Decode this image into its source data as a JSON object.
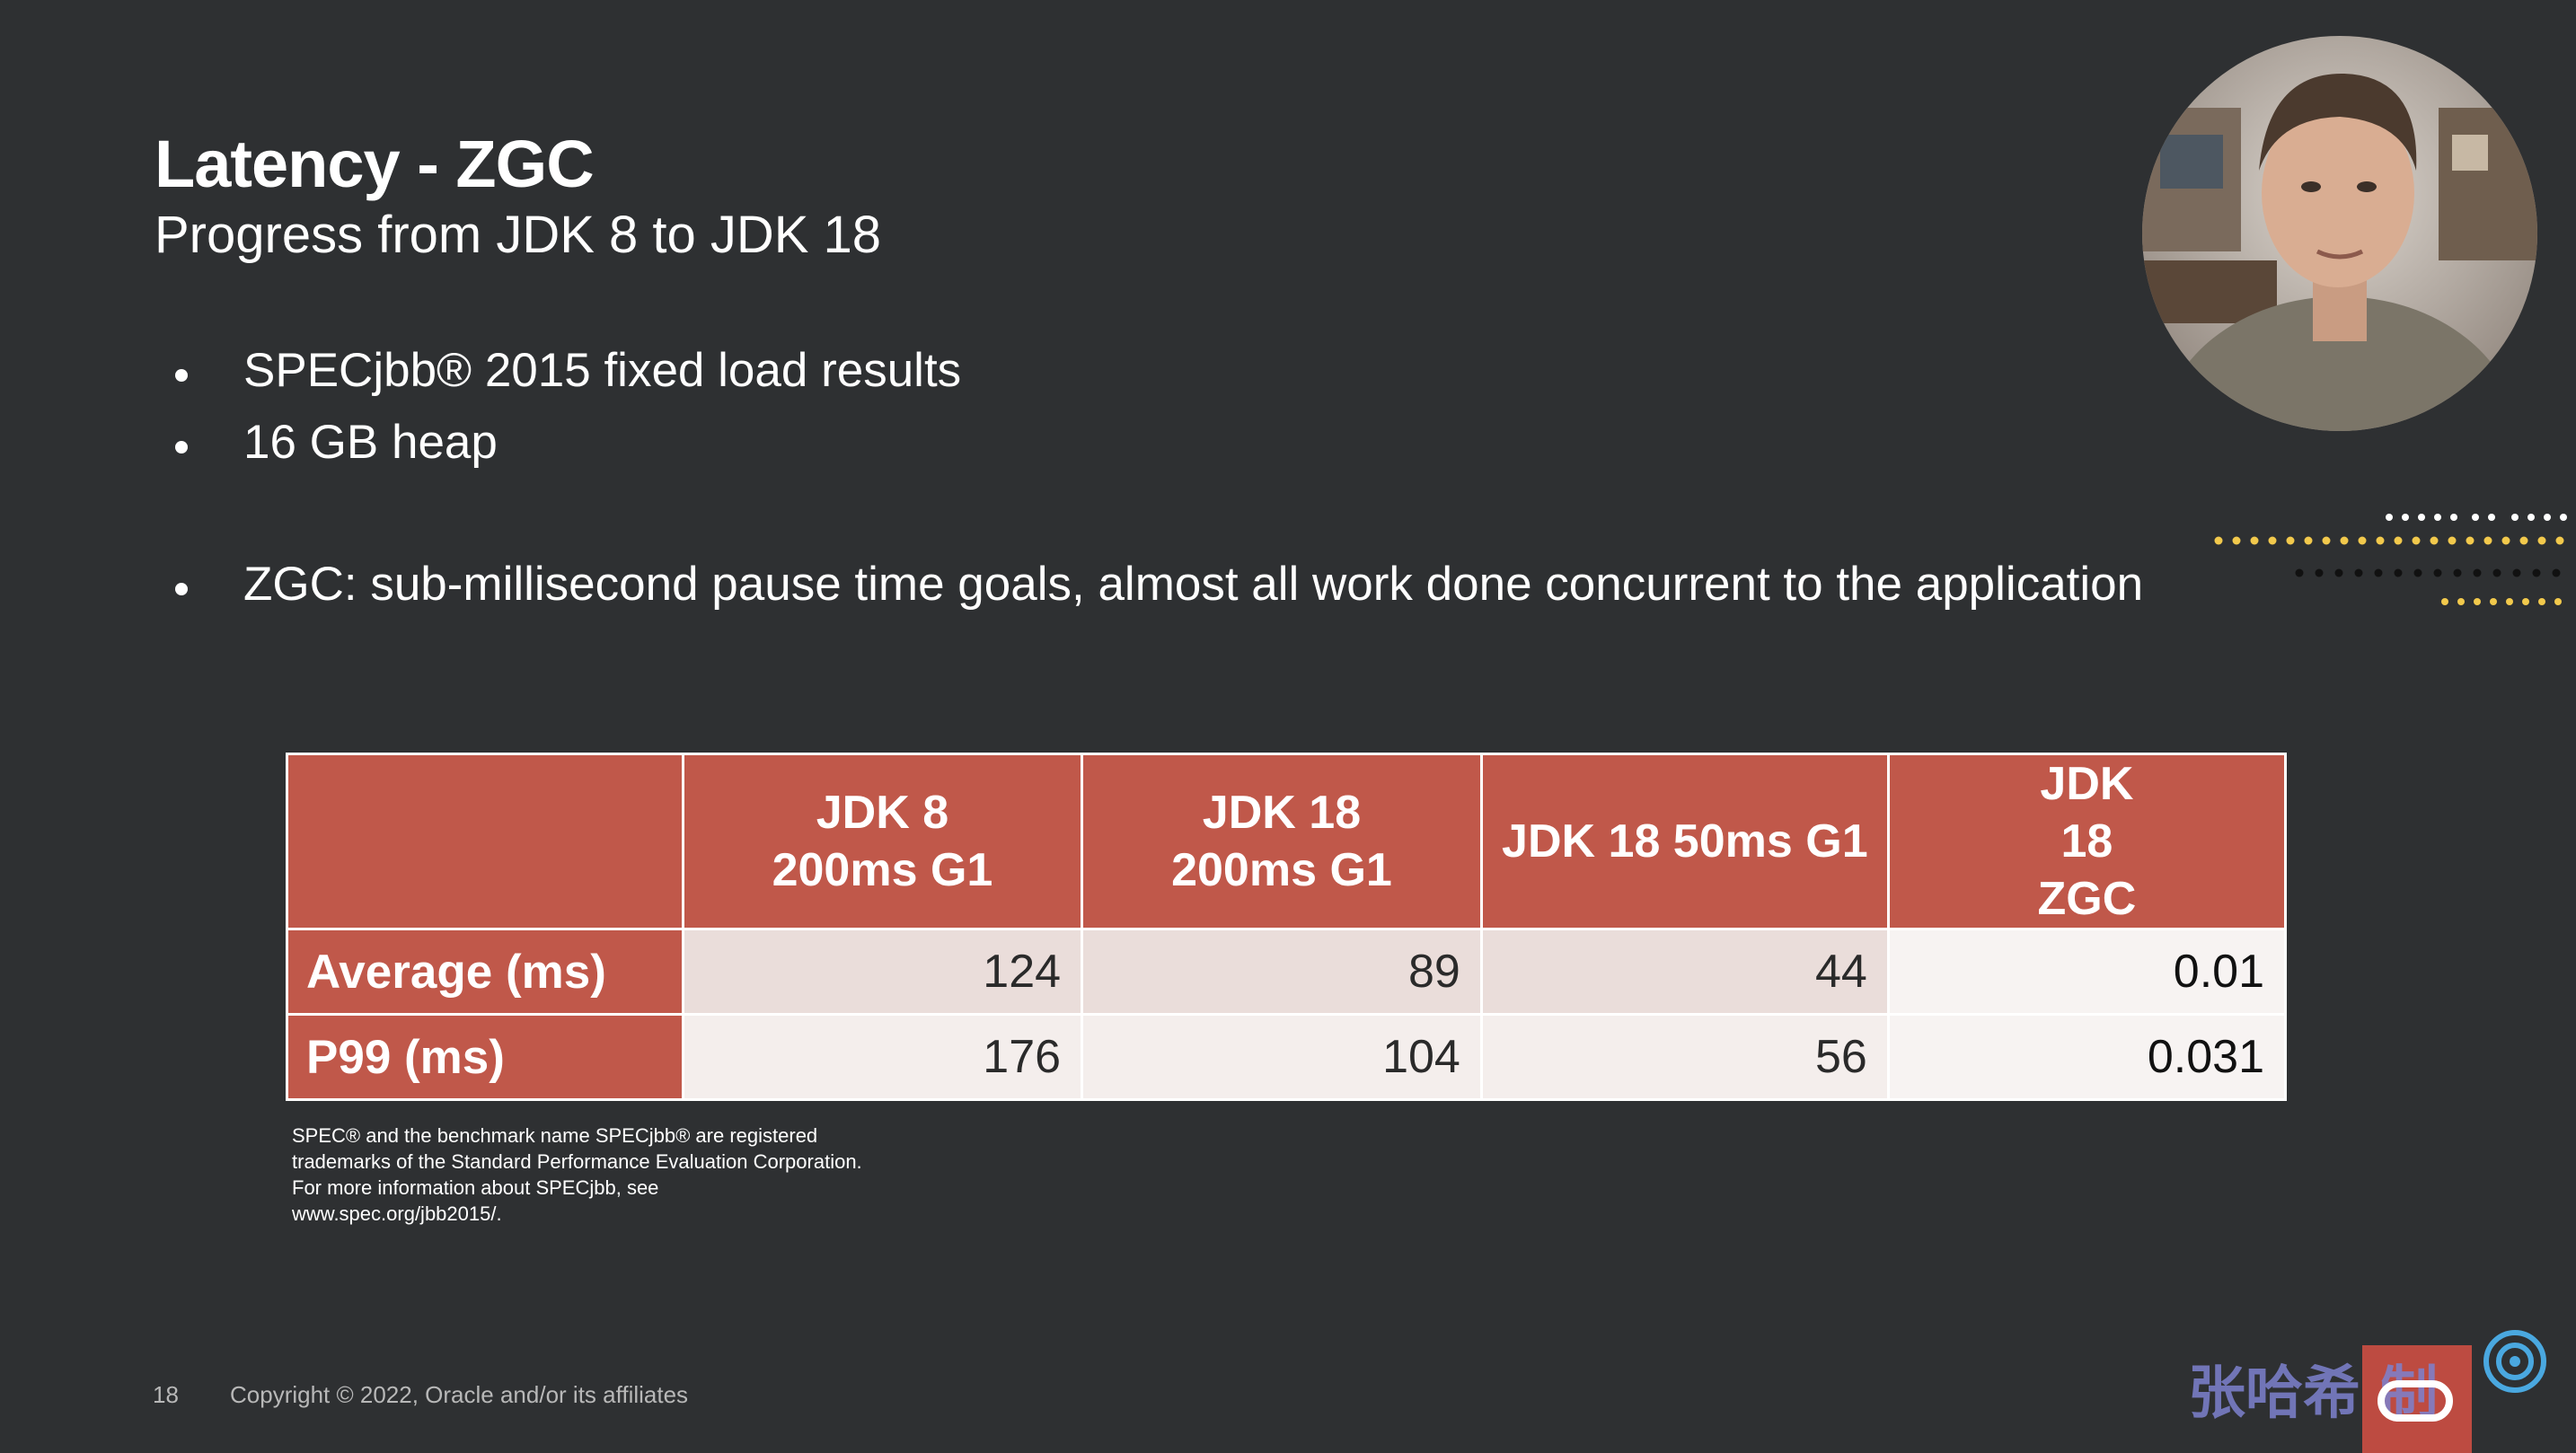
{
  "slide": {
    "title": "Latency - ZGC",
    "subtitle": "Progress from JDK 8 to JDK 18",
    "bullets": [
      "SPECjbb® 2015 fixed load results",
      "16 GB heap",
      "ZGC: sub-millisecond pause time goals, almost all work done concurrent to the application"
    ]
  },
  "table": {
    "headers": [
      "",
      "JDK 8 200ms G1",
      "JDK 18 200ms G1",
      "JDK 18 50ms G1",
      "JDK 18 ZGC"
    ],
    "rows": [
      {
        "label": "Average (ms)",
        "values": [
          "124",
          "89",
          "44",
          "0.01"
        ]
      },
      {
        "label": "P99 (ms)",
        "values": [
          "176",
          "104",
          "56",
          "0.031"
        ]
      }
    ]
  },
  "footnote": [
    "SPEC® and the benchmark name SPECjbb® are registered",
    "trademarks of the Standard Performance Evaluation Corporation.",
    "For more information about SPECjbb, see",
    "www.spec.org/jbb2015/."
  ],
  "footer": {
    "page_number": "18",
    "copyright": "Copyright © 2022, Oracle and/or its affiliates"
  },
  "watermark": {
    "text": "张哈希 制"
  },
  "colors": {
    "background": "#2e3032",
    "table_header": "#c0584a",
    "table_row_1": "#eaddda",
    "table_row_2": "#f4eeec",
    "dots_accent": "#f2c94c"
  },
  "icons": [
    "webcam-video",
    "decorative-dots",
    "oracle-logo",
    "watermark-logo"
  ]
}
